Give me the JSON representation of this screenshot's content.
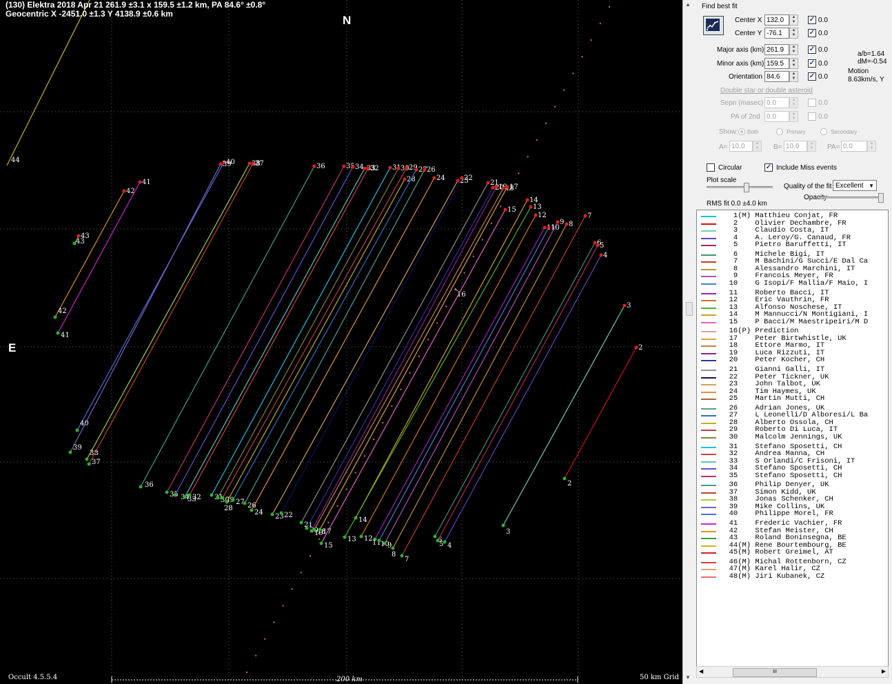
{
  "header": {
    "line1": "(130) Elektra  2018 Apr 21   261.9 ±3.1 x 159.5 ±1.2 km, PA 84.6° ±0.8°",
    "line2": "Geocentric X  -2451.0 ±1.3  Y 4138.9 ±0.6 km"
  },
  "compass": {
    "north": "N",
    "east": "E"
  },
  "footer": {
    "version": "Occult 4.5.5.4",
    "scale": "200 km",
    "grid": "50 km Grid"
  },
  "panel": {
    "find_best_fit": "Find best fit",
    "center_x_label": "Center X",
    "center_x": "132.0",
    "center_y_label": "Center Y",
    "center_y": "-76.1",
    "major_label": "Major axis (km)",
    "major": "261.9",
    "minor_label": "Minor axis (km)",
    "minor": "159.5",
    "orient_label": "Orientation",
    "orient": "84.6",
    "fix_value": "0.0",
    "ab": "a/b=1.64",
    "dm": "dM=-0.54",
    "motion_label": "Motion",
    "motion": "8.63km/s, Y",
    "double_title": "Double star  or  double asteroid",
    "sepn_label": "Sepn (masec)",
    "sepn": "0.0",
    "pa2_label": "PA of 2nd",
    "pa2": "0.0",
    "show_label": "Show:",
    "both": "Both",
    "primary": "Primary",
    "secondary": "Secondary",
    "a_label": "A=",
    "a": "10.0",
    "b_label": "B=",
    "b": "10.0",
    "pa_label": "PA=",
    "pa": "0.0",
    "circular": "Circular",
    "include_miss": "Include Miss events",
    "plot_scale": "Plot scale",
    "quality_label": "Quality of the fit",
    "quality": "Excellent",
    "opacity": "Opacity",
    "rms": "RMS fit 0.0 ±4.0 km"
  },
  "colors": {
    "plot_bg": "#000000",
    "panel_bg": "#f0f0f0"
  },
  "observers": [
    {
      "no": "1",
      "flag": "(M)",
      "name": "Matthieu Conjat, FR",
      "color": "#00c8c8"
    },
    {
      "no": "2",
      "flag": "",
      "name": "Olivier Dechambre, FR",
      "color": "#d01010"
    },
    {
      "no": "3",
      "flag": "",
      "name": "Claudio Costa, IT",
      "color": "#70d0b0"
    },
    {
      "no": "4",
      "flag": "",
      "name": "A. Leroy/G. Canaud, FR",
      "color": "#6040c0"
    },
    {
      "no": "5",
      "flag": "",
      "name": "Pietro Baruffetti, IT",
      "color": "#b02060"
    },
    {
      "no": "6",
      "flag": "",
      "name": "Michele Bigi, IT",
      "color": "#409070"
    },
    {
      "no": "7",
      "flag": "",
      "name": "M Bachini/G Succi/E Dal Ca",
      "color": "#c04020"
    },
    {
      "no": "8",
      "flag": "",
      "name": "Alessandro Marchini, IT",
      "color": "#c09030"
    },
    {
      "no": "9",
      "flag": "",
      "name": "Francois Meyer, FR",
      "color": "#b050b0"
    },
    {
      "no": "10",
      "flag": "",
      "name": "G Isopi/F Mallia/F Maio, I",
      "color": "#4080d0"
    },
    {
      "no": "11",
      "flag": "",
      "name": "Roberto Bacci, IT",
      "color": "#a020c0"
    },
    {
      "no": "12",
      "flag": "",
      "name": "Eric Vauthrin, FR",
      "color": "#d07020"
    },
    {
      "no": "13",
      "flag": "",
      "name": "Alfonso Noschese, IT",
      "color": "#50b030"
    },
    {
      "no": "14",
      "flag": "",
      "name": "M Mannucci/N Montigiani, I",
      "color": "#d0a020"
    },
    {
      "no": "15",
      "flag": "",
      "name": "P Bacci/M Maestripeiri/M D",
      "color": "#e060c0"
    },
    {
      "no": "16",
      "flag": "(P)",
      "name": "Prediction",
      "color": "#d8a0a0"
    },
    {
      "no": "17",
      "flag": "",
      "name": "Peter Birtwhistle, UK",
      "color": "#e0a040"
    },
    {
      "no": "18",
      "flag": "",
      "name": "Ettore Marmo, IT",
      "color": "#c08040"
    },
    {
      "no": "19",
      "flag": "",
      "name": "Luca Rizzuti, IT",
      "color": "#902090"
    },
    {
      "no": "20",
      "flag": "",
      "name": "Peter Kocher, CH",
      "color": "#3030a0"
    },
    {
      "no": "21",
      "flag": "",
      "name": "Gianni Galli, IT",
      "color": "#909090"
    },
    {
      "no": "22",
      "flag": "",
      "name": "Peter Tickner, UK",
      "color": "#101060"
    },
    {
      "no": "23",
      "flag": "",
      "name": "John Talbot, UK",
      "color": "#d0a060"
    },
    {
      "no": "24",
      "flag": "",
      "name": "Tim Haymes, UK",
      "color": "#e09040"
    },
    {
      "no": "25",
      "flag": "",
      "name": "Martin Mutti, CH",
      "color": "#b06040"
    },
    {
      "no": "26",
      "flag": "",
      "name": "Adrian Jones, UK",
      "color": "#50a090"
    },
    {
      "no": "27",
      "flag": "",
      "name": "L Leonelli/D Alboresi/L Ba",
      "color": "#3070c0"
    },
    {
      "no": "28",
      "flag": "",
      "name": "Alberto Ossola, CH",
      "color": "#c0b020"
    },
    {
      "no": "29",
      "flag": "",
      "name": "Roberto Di Luca, IT",
      "color": "#c04040"
    },
    {
      "no": "30",
      "flag": "",
      "name": "Malcolm Jennings, UK",
      "color": "#808040"
    },
    {
      "no": "31",
      "flag": "",
      "name": "Stefano Sposetti, CH",
      "color": "#20c0e0"
    },
    {
      "no": "32",
      "flag": "",
      "name": "Andrea Manna, CH",
      "color": "#d04040"
    },
    {
      "no": "33",
      "flag": "",
      "name": "S Orlandi/C Frisoni, IT",
      "color": "#60c0c0"
    },
    {
      "no": "34",
      "flag": "",
      "name": "Stefano Sposetti, CH",
      "color": "#6050d0"
    },
    {
      "no": "35",
      "flag": "",
      "name": "Stefano Sposetti, CH",
      "color": "#c03070"
    },
    {
      "no": "36",
      "flag": "",
      "name": "Philip Denyer, UK",
      "color": "#40a080"
    },
    {
      "no": "37",
      "flag": "",
      "name": "Simon Kidd, UK",
      "color": "#c04030"
    },
    {
      "no": "38",
      "flag": "",
      "name": "Jonas Schenker, CH",
      "color": "#a0d040"
    },
    {
      "no": "39",
      "flag": "",
      "name": "Mike Collins, UK",
      "color": "#8060c0"
    },
    {
      "no": "40",
      "flag": "",
      "name": "Philippe Morel, FR",
      "color": "#4070e0"
    },
    {
      "no": "41",
      "flag": "",
      "name": "Frederic Vachier, FR",
      "color": "#d020d0"
    },
    {
      "no": "42",
      "flag": "",
      "name": "Stefan Meister, CH",
      "color": "#e09020"
    },
    {
      "no": "43",
      "flag": "",
      "name": "Roland Boninsegna, BE",
      "color": "#30a030"
    },
    {
      "no": "44",
      "flag": "(M)",
      "name": "Rene Bourtembourg, BE",
      "color": "#d0b020"
    },
    {
      "no": "45",
      "flag": "(M)",
      "name": "Robert Greimel, AT",
      "color": "#d02020"
    },
    {
      "no": "46",
      "flag": "(M)",
      "name": "Michal Rottenborn, CZ",
      "color": "#d04040"
    },
    {
      "no": "47",
      "flag": "(M)",
      "name": "Karel Halir, CZ",
      "color": "#e0a080"
    },
    {
      "no": "48",
      "flag": "(M)",
      "name": "Jiri Kubanek, CZ",
      "color": "#e07070"
    }
  ],
  "chords": [
    {
      "no": "43",
      "end_label": "43",
      "start_label": "43"
    },
    {
      "no": "42",
      "end_label": "42",
      "start_label": "42"
    },
    {
      "no": "41",
      "end_label": "41",
      "start_label": "41"
    },
    {
      "no": "40",
      "end_label": "40",
      "start_label": "40"
    },
    {
      "no": "39",
      "end_label": "39",
      "start_label": "39"
    },
    {
      "no": "38",
      "end_label": "38",
      "start_label": "38"
    },
    {
      "no": "37",
      "end_label": "37",
      "start_label": "37"
    },
    {
      "no": "36",
      "end_label": "36",
      "start_label": "36"
    },
    {
      "no": "35",
      "end_label": "35",
      "start_label": "35"
    },
    {
      "no": "34",
      "end_label": "34",
      "start_label": "34"
    },
    {
      "no": "33",
      "end_label": "33",
      "start_label": "33"
    },
    {
      "no": "32",
      "end_label": "32",
      "start_label": "32"
    },
    {
      "no": "31",
      "end_label": "31",
      "start_label": "31"
    },
    {
      "no": "30",
      "end_label": "30",
      "start_label": "30"
    },
    {
      "no": "29",
      "end_label": "29",
      "start_label": "29"
    },
    {
      "no": "28",
      "end_label": "28",
      "start_label": "28"
    },
    {
      "no": "27",
      "end_label": "27",
      "start_label": "27"
    },
    {
      "no": "26",
      "end_label": "26",
      "start_label": "26"
    },
    {
      "no": "24",
      "end_label": "24",
      "start_label": "24"
    },
    {
      "no": "23",
      "end_label": "23",
      "start_label": "23"
    },
    {
      "no": "22",
      "end_label": "22",
      "start_label": "22"
    },
    {
      "no": "21",
      "end_label": "21",
      "start_label": "21"
    },
    {
      "no": "20",
      "end_label": "20",
      "start_label": "20"
    },
    {
      "no": "19",
      "end_label": "19",
      "start_label": "19"
    },
    {
      "no": "18",
      "end_label": "18",
      "start_label": "18"
    },
    {
      "no": "17",
      "end_label": "17",
      "start_label": "17"
    },
    {
      "no": "15",
      "end_label": "15",
      "start_label": "15"
    },
    {
      "no": "14",
      "end_label": "14",
      "start_label": "14"
    },
    {
      "no": "13",
      "end_label": "13",
      "start_label": "13"
    },
    {
      "no": "12",
      "end_label": "12",
      "start_label": "12"
    },
    {
      "no": "11",
      "end_label": "11",
      "start_label": "11"
    },
    {
      "no": "10",
      "end_label": "10",
      "start_label": "10"
    },
    {
      "no": "9",
      "end_label": "9",
      "start_label": "9"
    },
    {
      "no": "8",
      "end_label": "8",
      "start_label": "8"
    },
    {
      "no": "7",
      "end_label": "7",
      "start_label": "7"
    },
    {
      "no": "6",
      "end_label": "6",
      "start_label": "6"
    },
    {
      "no": "5",
      "end_label": "5",
      "start_label": "5"
    },
    {
      "no": "4",
      "end_label": "4",
      "start_label": "4"
    },
    {
      "no": "3",
      "end_label": "3",
      "start_label": "3"
    },
    {
      "no": "2",
      "end_label": "2",
      "start_label": "2"
    }
  ],
  "misc_labels": {
    "l44": "44",
    "l16": "16"
  }
}
